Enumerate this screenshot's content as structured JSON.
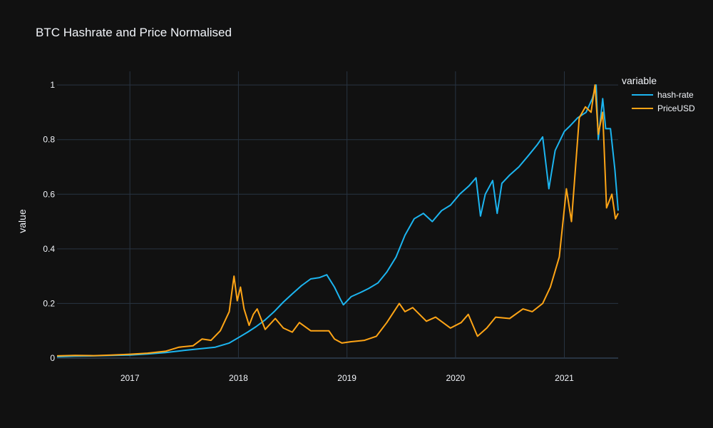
{
  "chart_data": {
    "type": "line",
    "title": "BTC Hashrate and Price Normalised",
    "xlabel": "",
    "ylabel": "value",
    "xlim": [
      "2016-05-01",
      "2021-07-01"
    ],
    "ylim": [
      0,
      1.05
    ],
    "x_ticks": [
      "2017",
      "2018",
      "2019",
      "2020",
      "2021"
    ],
    "y_ticks": [
      "0",
      "0.2",
      "0.4",
      "0.6",
      "0.8",
      "1"
    ],
    "grid": true,
    "legend": {
      "title": "variable",
      "placement": "top-right"
    },
    "series": [
      {
        "name": "hash-rate",
        "color": "#1cb5f0",
        "points": [
          [
            "2016-05-01",
            0.005
          ],
          [
            "2016-07-01",
            0.007
          ],
          [
            "2016-09-01",
            0.008
          ],
          [
            "2016-11-01",
            0.01
          ],
          [
            "2017-01-01",
            0.011
          ],
          [
            "2017-03-01",
            0.015
          ],
          [
            "2017-05-01",
            0.02
          ],
          [
            "2017-07-01",
            0.028
          ],
          [
            "2017-09-01",
            0.035
          ],
          [
            "2017-10-15",
            0.04
          ],
          [
            "2017-12-01",
            0.055
          ],
          [
            "2018-01-01",
            0.075
          ],
          [
            "2018-02-01",
            0.095
          ],
          [
            "2018-03-01",
            0.115
          ],
          [
            "2018-04-01",
            0.14
          ],
          [
            "2018-05-01",
            0.17
          ],
          [
            "2018-06-01",
            0.205
          ],
          [
            "2018-07-01",
            0.235
          ],
          [
            "2018-08-01",
            0.265
          ],
          [
            "2018-09-01",
            0.29
          ],
          [
            "2018-10-01",
            0.295
          ],
          [
            "2018-10-25",
            0.305
          ],
          [
            "2018-11-20",
            0.26
          ],
          [
            "2018-12-10",
            0.215
          ],
          [
            "2018-12-20",
            0.195
          ],
          [
            "2019-01-15",
            0.225
          ],
          [
            "2019-02-15",
            0.24
          ],
          [
            "2019-03-15",
            0.255
          ],
          [
            "2019-04-15",
            0.275
          ],
          [
            "2019-05-15",
            0.315
          ],
          [
            "2019-06-15",
            0.37
          ],
          [
            "2019-07-15",
            0.45
          ],
          [
            "2019-08-15",
            0.51
          ],
          [
            "2019-09-15",
            0.53
          ],
          [
            "2019-10-15",
            0.5
          ],
          [
            "2019-11-15",
            0.54
          ],
          [
            "2019-12-15",
            0.56
          ],
          [
            "2020-01-15",
            0.6
          ],
          [
            "2020-02-15",
            0.63
          ],
          [
            "2020-03-10",
            0.66
          ],
          [
            "2020-03-25",
            0.52
          ],
          [
            "2020-04-10",
            0.6
          ],
          [
            "2020-05-05",
            0.65
          ],
          [
            "2020-05-20",
            0.53
          ],
          [
            "2020-06-05",
            0.64
          ],
          [
            "2020-07-01",
            0.67
          ],
          [
            "2020-08-01",
            0.7
          ],
          [
            "2020-09-01",
            0.74
          ],
          [
            "2020-10-01",
            0.78
          ],
          [
            "2020-10-20",
            0.81
          ],
          [
            "2020-11-10",
            0.62
          ],
          [
            "2020-12-01",
            0.76
          ],
          [
            "2021-01-01",
            0.83
          ],
          [
            "2021-01-20",
            0.85
          ],
          [
            "2021-02-15",
            0.88
          ],
          [
            "2021-03-15",
            0.9
          ],
          [
            "2021-04-05",
            0.95
          ],
          [
            "2021-04-18",
            1.0
          ],
          [
            "2021-04-25",
            0.8
          ],
          [
            "2021-05-10",
            0.95
          ],
          [
            "2021-05-20",
            0.84
          ],
          [
            "2021-06-05",
            0.84
          ],
          [
            "2021-06-20",
            0.69
          ],
          [
            "2021-07-01",
            0.54
          ]
        ]
      },
      {
        "name": "PriceUSD",
        "color": "#ffa516",
        "points": [
          [
            "2016-05-01",
            0.008
          ],
          [
            "2016-07-01",
            0.01
          ],
          [
            "2016-09-01",
            0.009
          ],
          [
            "2016-11-01",
            0.011
          ],
          [
            "2017-01-01",
            0.014
          ],
          [
            "2017-03-01",
            0.018
          ],
          [
            "2017-05-01",
            0.025
          ],
          [
            "2017-06-15",
            0.04
          ],
          [
            "2017-08-01",
            0.045
          ],
          [
            "2017-09-01",
            0.07
          ],
          [
            "2017-10-01",
            0.065
          ],
          [
            "2017-11-01",
            0.1
          ],
          [
            "2017-12-01",
            0.17
          ],
          [
            "2017-12-17",
            0.3
          ],
          [
            "2017-12-28",
            0.21
          ],
          [
            "2018-01-08",
            0.26
          ],
          [
            "2018-01-20",
            0.18
          ],
          [
            "2018-02-06",
            0.12
          ],
          [
            "2018-02-20",
            0.16
          ],
          [
            "2018-03-05",
            0.18
          ],
          [
            "2018-04-01",
            0.105
          ],
          [
            "2018-05-05",
            0.145
          ],
          [
            "2018-06-01",
            0.11
          ],
          [
            "2018-07-01",
            0.095
          ],
          [
            "2018-07-25",
            0.13
          ],
          [
            "2018-09-01",
            0.1
          ],
          [
            "2018-10-01",
            0.1
          ],
          [
            "2018-11-01",
            0.1
          ],
          [
            "2018-11-20",
            0.07
          ],
          [
            "2018-12-15",
            0.055
          ],
          [
            "2019-01-15",
            0.06
          ],
          [
            "2019-03-01",
            0.065
          ],
          [
            "2019-04-10",
            0.08
          ],
          [
            "2019-05-15",
            0.13
          ],
          [
            "2019-06-26",
            0.2
          ],
          [
            "2019-07-15",
            0.17
          ],
          [
            "2019-08-10",
            0.185
          ],
          [
            "2019-09-25",
            0.135
          ],
          [
            "2019-10-26",
            0.15
          ],
          [
            "2019-12-15",
            0.11
          ],
          [
            "2020-01-20",
            0.13
          ],
          [
            "2020-02-13",
            0.16
          ],
          [
            "2020-03-15",
            0.08
          ],
          [
            "2020-04-15",
            0.11
          ],
          [
            "2020-05-15",
            0.15
          ],
          [
            "2020-07-01",
            0.145
          ],
          [
            "2020-08-15",
            0.18
          ],
          [
            "2020-09-15",
            0.17
          ],
          [
            "2020-10-20",
            0.2
          ],
          [
            "2020-11-15",
            0.26
          ],
          [
            "2020-12-15",
            0.37
          ],
          [
            "2021-01-08",
            0.62
          ],
          [
            "2021-01-25",
            0.5
          ],
          [
            "2021-02-20",
            0.88
          ],
          [
            "2021-03-13",
            0.92
          ],
          [
            "2021-04-01",
            0.9
          ],
          [
            "2021-04-14",
            1.0
          ],
          [
            "2021-04-25",
            0.82
          ],
          [
            "2021-05-10",
            0.9
          ],
          [
            "2021-05-23",
            0.55
          ],
          [
            "2021-06-10",
            0.6
          ],
          [
            "2021-06-22",
            0.51
          ],
          [
            "2021-07-01",
            0.53
          ]
        ]
      }
    ]
  }
}
